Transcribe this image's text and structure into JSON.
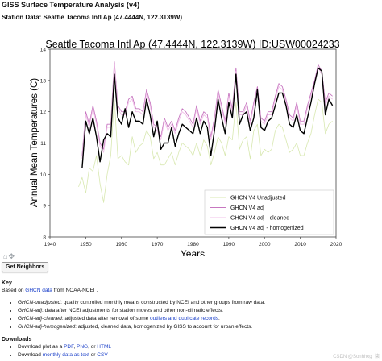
{
  "page": {
    "title": "GISS Surface Temperature Analysis (v4)",
    "station_line": "Station Data: Seattle Tacoma Intl Ap (47.4444N, 122.3139W)"
  },
  "chart_data": {
    "type": "line",
    "title": "Seattle Tacoma Intl Ap (47.4444N, 122.3139W) ID:USW00024233",
    "xlabel": "Years",
    "ylabel": "Annual Mean Temperatures (C)",
    "xlim": [
      1940,
      2020
    ],
    "ylim": [
      8,
      14
    ],
    "xticks": [
      1940,
      1950,
      1960,
      1970,
      1980,
      1990,
      2000,
      2010,
      2020
    ],
    "yticks": [
      8,
      9,
      10,
      11,
      12,
      13,
      14
    ],
    "grid": false,
    "legend_position": "bottom-right",
    "series": [
      {
        "name": "GHCN V4 Unadjusted",
        "color": "#d8e8b0",
        "x": [
          1948,
          1949,
          1950,
          1951,
          1952,
          1953,
          1954,
          1955,
          1956,
          1957,
          1958,
          1959,
          1960,
          1961,
          1962,
          1963,
          1964,
          1965,
          1966,
          1967,
          1968,
          1969,
          1970,
          1971,
          1972,
          1973,
          1974,
          1975,
          1976,
          1977,
          1978,
          1979,
          1980,
          1981,
          1982,
          1983,
          1984,
          1985,
          1986,
          1987,
          1988,
          1989,
          1990,
          1991,
          1992,
          1993,
          1994,
          1995,
          1996,
          1997,
          1998,
          1999,
          2000,
          2001,
          2002,
          2003,
          2004,
          2005,
          2006,
          2007,
          2008,
          2009,
          2010,
          2011,
          2012,
          2013,
          2014,
          2015,
          2016,
          2017,
          2018,
          2019
        ],
        "y": [
          9.6,
          9.9,
          9.4,
          10.2,
          10.1,
          10.6,
          9.7,
          9.1,
          10.0,
          10.6,
          12.4,
          10.5,
          10.6,
          10.4,
          10.3,
          11.2,
          10.7,
          10.9,
          11.0,
          11.4,
          11.2,
          10.5,
          10.7,
          10.3,
          10.3,
          10.5,
          10.7,
          10.3,
          10.7,
          11.0,
          10.9,
          10.8,
          10.6,
          11.0,
          10.6,
          11.1,
          10.9,
          10.3,
          10.7,
          11.2,
          11.0,
          10.6,
          11.2,
          11.1,
          12.3,
          10.8,
          11.1,
          11.2,
          10.5,
          11.4,
          11.6,
          10.6,
          10.8,
          10.7,
          10.8,
          11.4,
          11.6,
          11.5,
          11.1,
          10.7,
          10.8,
          11.0,
          10.6,
          10.6,
          11.0,
          11.3,
          11.9,
          12.4,
          12.3,
          11.3,
          11.6,
          11.7
        ]
      },
      {
        "name": "GHCN V4 adj",
        "color": "#c777c0",
        "x": [
          1949,
          1950,
          1951,
          1952,
          1953,
          1954,
          1955,
          1956,
          1957,
          1958,
          1959,
          1960,
          1961,
          1962,
          1963,
          1964,
          1965,
          1966,
          1967,
          1968,
          1969,
          1970,
          1971,
          1972,
          1973,
          1974,
          1975,
          1976,
          1977,
          1978,
          1979,
          1980,
          1981,
          1982,
          1983,
          1984,
          1985,
          1986,
          1987,
          1988,
          1989,
          1990,
          1991,
          1992,
          1993,
          1994,
          1995,
          1996,
          1997,
          1998,
          1999,
          2000,
          2001,
          2002,
          2003,
          2004,
          2005,
          2006,
          2007,
          2008,
          2009,
          2010,
          2011,
          2012,
          2013,
          2014,
          2015,
          2016,
          2017,
          2018,
          2019
        ],
        "y": [
          10.6,
          12.0,
          11.6,
          12.2,
          11.7,
          11.0,
          10.8,
          11.6,
          11.6,
          13.6,
          12.2,
          12.0,
          12.0,
          12.4,
          12.5,
          12.1,
          12.1,
          12.0,
          12.7,
          12.3,
          11.6,
          11.5,
          11.2,
          11.8,
          11.5,
          11.7,
          11.4,
          11.8,
          12.1,
          12.0,
          11.8,
          11.6,
          12.2,
          11.7,
          12.0,
          11.9,
          11.2,
          11.8,
          12.7,
          12.2,
          11.7,
          12.6,
          12.1,
          13.4,
          12.0,
          12.0,
          12.3,
          11.7,
          12.3,
          12.8,
          11.8,
          11.7,
          12.0,
          12.0,
          12.5,
          12.9,
          12.8,
          12.4,
          11.9,
          11.8,
          12.3,
          11.7,
          11.7,
          12.2,
          12.6,
          13.0,
          13.5,
          13.3,
          12.3,
          12.6,
          12.5
        ]
      },
      {
        "name": "GHCN V4 adj - cleaned",
        "color": "#f0c0e8",
        "x": [
          1949,
          1950,
          1951,
          1952,
          1953,
          1954,
          1955,
          1956,
          1957,
          1958,
          1959,
          1960,
          1961,
          1962,
          1963,
          1964,
          1965,
          1966,
          1967,
          1968,
          1969,
          1970,
          1971,
          1972,
          1973,
          1974,
          1975,
          1976,
          1977,
          1978,
          1979,
          1980,
          1981,
          1982,
          1983,
          1984,
          1985,
          1986,
          1987,
          1988,
          1989,
          1990,
          1991,
          1992,
          1993,
          1994,
          1995,
          1996,
          1997,
          1998,
          1999,
          2000,
          2001,
          2002,
          2003,
          2004,
          2005,
          2006,
          2007,
          2008,
          2009,
          2010,
          2011,
          2012,
          2013,
          2014,
          2015,
          2016,
          2017,
          2018,
          2019
        ],
        "y": [
          10.5,
          11.9,
          11.5,
          12.1,
          11.6,
          10.9,
          10.7,
          11.5,
          11.5,
          13.5,
          12.1,
          11.9,
          11.9,
          12.3,
          12.4,
          12.0,
          12.0,
          11.9,
          12.6,
          12.2,
          11.5,
          11.4,
          11.1,
          11.7,
          11.4,
          11.6,
          11.3,
          11.7,
          12.0,
          11.9,
          11.7,
          11.5,
          12.1,
          11.6,
          11.9,
          11.8,
          11.1,
          11.7,
          12.6,
          12.1,
          11.6,
          12.5,
          12.0,
          13.3,
          11.9,
          11.9,
          12.2,
          11.6,
          12.2,
          12.7,
          11.7,
          11.6,
          11.9,
          11.9,
          12.4,
          12.8,
          12.7,
          12.3,
          11.8,
          11.7,
          12.2,
          11.6,
          11.6,
          12.1,
          12.5,
          12.9,
          13.4,
          13.2,
          12.2,
          12.5,
          12.4
        ]
      },
      {
        "name": "GHCN V4 adj - homogenized",
        "color": "#000000",
        "x": [
          1949,
          1950,
          1951,
          1952,
          1953,
          1954,
          1955,
          1956,
          1957,
          1958,
          1959,
          1960,
          1961,
          1962,
          1963,
          1964,
          1965,
          1966,
          1967,
          1968,
          1969,
          1970,
          1971,
          1972,
          1973,
          1974,
          1975,
          1976,
          1977,
          1978,
          1979,
          1980,
          1981,
          1982,
          1983,
          1984,
          1985,
          1986,
          1987,
          1988,
          1989,
          1990,
          1991,
          1992,
          1993,
          1994,
          1995,
          1996,
          1997,
          1998,
          1999,
          2000,
          2001,
          2002,
          2003,
          2004,
          2005,
          2006,
          2007,
          2008,
          2009,
          2010,
          2011,
          2012,
          2013,
          2014,
          2015,
          2016,
          2017,
          2018,
          2019
        ],
        "y": [
          10.2,
          11.7,
          11.3,
          11.8,
          11.2,
          10.4,
          11.1,
          11.3,
          11.2,
          13.2,
          11.8,
          11.6,
          12.1,
          11.5,
          12.0,
          11.7,
          11.7,
          11.6,
          12.4,
          11.9,
          11.2,
          11.7,
          10.8,
          11.0,
          11.0,
          11.5,
          10.9,
          11.3,
          11.6,
          11.5,
          11.4,
          11.3,
          11.8,
          11.3,
          11.7,
          11.5,
          10.6,
          11.4,
          12.4,
          11.8,
          11.3,
          12.3,
          11.8,
          13.2,
          11.6,
          11.9,
          12.0,
          11.4,
          11.8,
          12.7,
          11.5,
          11.4,
          11.7,
          11.8,
          12.2,
          12.6,
          12.6,
          12.2,
          11.6,
          11.5,
          11.9,
          11.4,
          11.3,
          11.8,
          12.3,
          12.9,
          13.4,
          13.3,
          11.9,
          12.4,
          12.2
        ]
      }
    ]
  },
  "toolbar": {
    "icons": [
      "home-icon",
      "move-icon"
    ]
  },
  "get_neighbors_button": "Get Neighbors",
  "key": {
    "heading": "Key",
    "based_prefix": "Based on ",
    "based_link": "GHCN data",
    "based_suffix": " from NOAA-NCEI .",
    "items": [
      {
        "term": "GHCN-unadjusted",
        "text": ": quality controlled monthly means constructed by NCEI and other groups from raw data."
      },
      {
        "term": "GHCN-adj",
        "text": ": data after NCEI adjustments for station moves and other non-climatic effects."
      },
      {
        "term": "GHCN-adj-cleaned",
        "pre": ": adjusted data after removal of some ",
        "link": "outliers and duplicate records",
        "post": "."
      },
      {
        "term": "GHCN-adj-homogenized",
        "text": ": adjusted, cleaned data, homogenized by GISS to account for urban effects."
      }
    ]
  },
  "downloads": {
    "heading": "Downloads",
    "plot": {
      "prefix": "Download plot as a ",
      "pdf": "PDF",
      "sep1": ", ",
      "png": "PNG",
      "sep2": ", or ",
      "html": "HTML"
    },
    "data": {
      "prefix": "Download ",
      "monthly": "monthly data as text",
      "sep": " or ",
      "csv": "CSV"
    }
  },
  "watermark": "CSDN @Sonhhxg_柒"
}
